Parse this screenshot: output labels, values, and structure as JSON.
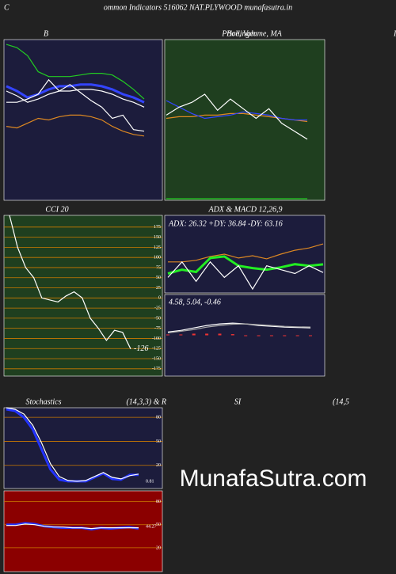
{
  "header": {
    "letter": "C",
    "title": "ommon  Indicators 516062  NAT.PLYWOOD munafasutra.in",
    "side_letter": "I"
  },
  "watermark": "MunafaSutra.com",
  "chart_data": [
    {
      "type": "line",
      "title": "B",
      "ylim": [
        0,
        100
      ],
      "series": [
        {
          "name": "upper",
          "color": "#22cc22",
          "values": [
            97,
            95,
            90,
            80,
            77,
            77,
            77,
            78,
            79,
            79,
            78,
            74,
            69,
            63
          ]
        },
        {
          "name": "middle",
          "color": "#3344ff",
          "values": [
            71,
            68,
            64,
            66,
            69,
            71,
            71,
            72,
            72,
            71,
            69,
            66,
            64,
            61
          ]
        },
        {
          "name": "middle-inner",
          "color": "#ffffff",
          "values": [
            68,
            65,
            61,
            63,
            66,
            68,
            68,
            69,
            69,
            68,
            66,
            63,
            61,
            58
          ]
        },
        {
          "name": "lower",
          "color": "#dd8822",
          "values": [
            46,
            45,
            48,
            51,
            50,
            52,
            53,
            53,
            52,
            50,
            46,
            43,
            41,
            40
          ]
        },
        {
          "name": "price",
          "color": "#ffffff",
          "values": [
            61,
            61,
            63,
            66,
            75,
            68,
            72,
            67,
            62,
            58,
            51,
            53,
            44,
            43
          ]
        }
      ]
    },
    {
      "type": "line",
      "title": "Price, Volume, MA",
      "subtitle": "Bollinger",
      "ylim": [
        0,
        100
      ],
      "series": [
        {
          "name": "band",
          "color": "#dd8822",
          "values": [
            51,
            52,
            52,
            53,
            53,
            54,
            54,
            53,
            52,
            51,
            50,
            49
          ]
        },
        {
          "name": "ma",
          "color": "#3344ff",
          "values": [
            62,
            58,
            54,
            51,
            52,
            53,
            55,
            54,
            53,
            51,
            50,
            50
          ]
        },
        {
          "name": "price",
          "color": "#ffffff",
          "values": [
            53,
            58,
            61,
            66,
            56,
            63,
            57,
            51,
            57,
            48,
            43,
            38
          ]
        },
        {
          "name": "volume",
          "color": "#22cc22",
          "values": [
            1,
            1,
            1,
            1,
            1,
            1,
            1,
            1,
            1,
            1,
            1,
            1
          ]
        }
      ]
    },
    {
      "type": "line",
      "title": "CCI 20",
      "ylim": [
        -193,
        204
      ],
      "yticks": [
        175,
        150,
        125,
        100,
        75,
        50,
        25,
        0,
        -25,
        -50,
        -75,
        -100,
        -125,
        -150,
        -175
      ],
      "series": [
        {
          "name": "cci",
          "color": "#ffffff",
          "values": [
            204,
            125,
            75,
            50,
            0,
            -5,
            -10,
            5,
            15,
            0,
            -50,
            -75,
            -105,
            -80,
            -85,
            -126
          ]
        }
      ]
    },
    {
      "type": "line",
      "title": "ADX  & MACD 12,26,9",
      "annotation": "ADX: 26.32  +DY: 36.84  -DY: 63.16",
      "ylim": [
        0,
        100
      ],
      "series": [
        {
          "name": "-DY",
          "color": "#dd8822",
          "values": [
            40,
            40,
            42,
            47,
            50,
            45,
            48,
            44,
            50,
            55,
            58,
            63.16
          ]
        },
        {
          "name": "+DY",
          "color": "#22ee22",
          "values": [
            25,
            30,
            27,
            45,
            47,
            35,
            32,
            30,
            33,
            37,
            35,
            36.84
          ]
        },
        {
          "name": "ADX",
          "color": "#ffffff",
          "values": [
            20,
            40,
            15,
            40,
            20,
            35,
            5,
            35,
            30,
            25,
            35,
            26.32
          ]
        }
      ]
    },
    {
      "type": "line",
      "annotation": "4.58,  5.04,  -0.46",
      "ylim": [
        -25,
        25
      ],
      "series": [
        {
          "name": "hist",
          "type": "bar",
          "color": "#ee3333",
          "values": [
            0.5,
            0.5,
            1,
            1,
            1,
            0.7,
            0,
            -0.5,
            -0.5,
            -0.5,
            -0.4,
            -0.46
          ]
        },
        {
          "name": "macd",
          "color": "#ffffff",
          "values": [
            2,
            3,
            4.5,
            6,
            7,
            7.5,
            7,
            6,
            5.5,
            5,
            4.8,
            4.58
          ]
        },
        {
          "name": "signal",
          "color": "#aaaaaa",
          "values": [
            1.5,
            2.5,
            3.5,
            5,
            6,
            6.8,
            7,
            6.5,
            6,
            5.5,
            5.2,
            5.04
          ]
        }
      ]
    },
    {
      "type": "line",
      "title": "Stochastics",
      "subtitle": "(14,3,3) & R",
      "annotation": "0.81",
      "ylim": [
        -9,
        92
      ],
      "yticks": [
        80,
        50,
        20
      ],
      "series": [
        {
          "name": "k",
          "color": "#2233ff",
          "values": [
            90,
            88,
            80,
            65,
            40,
            15,
            2,
            0,
            0,
            0,
            5,
            10,
            3,
            2,
            8,
            8
          ]
        },
        {
          "name": "d",
          "color": "#ffffff",
          "values": [
            92,
            90,
            84,
            70,
            48,
            22,
            6,
            1,
            0,
            1,
            6,
            11,
            5,
            3,
            7,
            9
          ]
        }
      ]
    },
    {
      "type": "line",
      "title": "SI",
      "subtitle": "(14,5",
      "annotation": "44.27",
      "ylim": [
        -11,
        94
      ],
      "yticks": [
        80,
        50,
        20
      ],
      "series": [
        {
          "name": "rsi",
          "color": "#2233ff",
          "values": [
            50,
            50,
            52,
            51,
            48,
            47,
            46,
            46,
            46,
            44,
            46,
            45,
            46,
            47,
            45
          ]
        },
        {
          "name": "rsi-mid",
          "color": "#ffffff",
          "values": [
            49,
            49,
            51,
            50,
            48,
            47,
            47,
            46,
            46,
            45,
            46,
            46,
            46,
            46,
            46
          ]
        }
      ]
    }
  ]
}
